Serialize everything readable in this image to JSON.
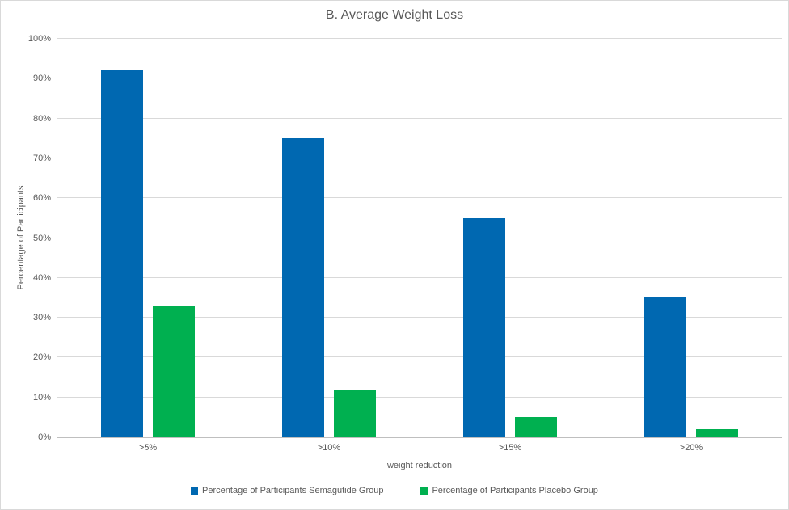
{
  "chart_data": {
    "type": "bar",
    "title": "B. Average Weight Loss",
    "xlabel": "weight reduction",
    "ylabel": "Percentage of Participants",
    "categories": [
      ">5%",
      ">10%",
      ">15%",
      ">20%"
    ],
    "series": [
      {
        "name": "Percentage of Participants Semagutide Group",
        "color": "#0068b1",
        "values": [
          92,
          75,
          55,
          35
        ]
      },
      {
        "name": "Percentage of Participants Placebo Group",
        "color": "#00b050",
        "values": [
          33,
          12,
          5,
          2
        ]
      }
    ],
    "ylim": [
      0,
      100
    ],
    "ytick_step": 10,
    "ytick_suffix": "%",
    "grid": true,
    "legend_position": "bottom",
    "colors": {
      "text": "#595959",
      "gridline": "#d9d9d9",
      "axis_line": "#bfbfbf",
      "background": "#ffffff"
    }
  }
}
